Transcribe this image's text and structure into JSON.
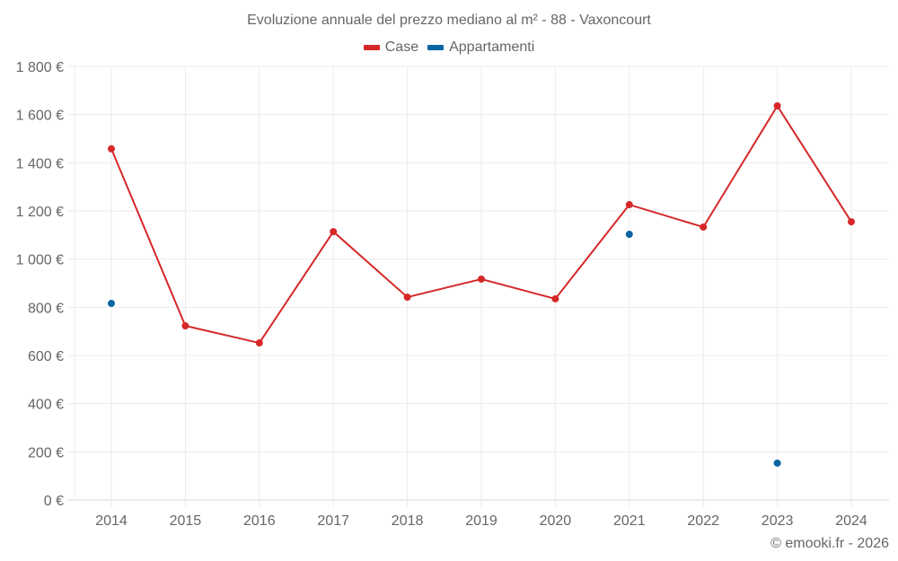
{
  "title": "Evoluzione annuale del prezzo mediano al m² - 88 - Vaxoncourt",
  "legend": [
    {
      "label": "Case",
      "color": "#d62728"
    },
    {
      "label": "Appartamenti",
      "color": "#0a66a3"
    }
  ],
  "copyright": "© emooki.fr - 2026",
  "chart_data": {
    "type": "line",
    "title": "Evoluzione annuale del prezzo mediano al m² - 88 - Vaxoncourt",
    "xlabel": "",
    "ylabel": "",
    "categories": [
      "2014",
      "2015",
      "2016",
      "2017",
      "2018",
      "2019",
      "2020",
      "2021",
      "2022",
      "2023",
      "2024"
    ],
    "series": [
      {
        "name": "Case",
        "color": "#d62728",
        "mode": "lines+markers",
        "values": [
          1458,
          723,
          652,
          1114,
          842,
          917,
          835,
          1226,
          1133,
          1636,
          1155
        ]
      },
      {
        "name": "Appartamenti",
        "color": "#0a66a3",
        "mode": "markers",
        "values": [
          816,
          null,
          null,
          null,
          null,
          null,
          null,
          1103,
          null,
          153,
          null
        ]
      }
    ],
    "ylim": [
      0,
      1800
    ],
    "yticks": [
      0,
      200,
      400,
      600,
      800,
      1000,
      1200,
      1400,
      1600,
      1800
    ],
    "ytick_labels": [
      "0 €",
      "200 €",
      "400 €",
      "600 €",
      "800 €",
      "1 000 €",
      "1 200 €",
      "1 400 €",
      "1 600 €",
      "1 800 €"
    ],
    "grid": true,
    "legend_position": "top"
  }
}
